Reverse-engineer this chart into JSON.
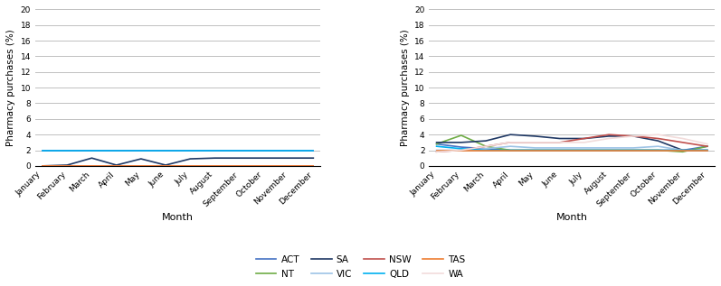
{
  "months": [
    "January",
    "February",
    "March",
    "April",
    "May",
    "June",
    "July",
    "August",
    "September",
    "October",
    "November",
    "December"
  ],
  "chart1": {
    "ylabel": "Pharmacy purchases (%)",
    "xlabel": "Month",
    "ylim": [
      0,
      20
    ],
    "yticks": [
      0,
      2,
      4,
      6,
      8,
      10,
      12,
      14,
      16,
      18,
      20
    ],
    "series": {
      "ACT": {
        "color": "#4472C4",
        "data": [
          2.0,
          2.0,
          2.0,
          2.0,
          2.0,
          2.0,
          2.0,
          2.0,
          2.0,
          2.0,
          2.0,
          2.0
        ]
      },
      "NT": {
        "color": "#70AD47",
        "data": [
          0.0,
          0.0,
          0.0,
          0.0,
          0.0,
          0.0,
          0.0,
          0.0,
          0.0,
          0.0,
          0.0,
          0.0
        ]
      },
      "SA": {
        "color": "#1F3864",
        "data": [
          0.0,
          0.1,
          1.0,
          0.1,
          0.9,
          0.1,
          0.9,
          1.0,
          1.0,
          1.0,
          1.0,
          1.0
        ]
      },
      "VIC": {
        "color": "#9DC3E6",
        "data": [
          0.0,
          0.0,
          0.0,
          0.0,
          0.0,
          0.0,
          0.0,
          0.0,
          0.0,
          0.0,
          0.0,
          0.0
        ]
      },
      "NSW": {
        "color": "#C0504D",
        "data": [
          0.0,
          0.0,
          0.0,
          0.0,
          0.0,
          0.0,
          0.0,
          0.0,
          0.0,
          0.0,
          0.0,
          0.0
        ]
      },
      "QLD": {
        "color": "#00B0F0",
        "data": [
          2.0,
          2.0,
          2.0,
          2.0,
          2.0,
          2.0,
          2.0,
          2.0,
          2.0,
          2.0,
          2.0,
          2.0
        ]
      },
      "TAS": {
        "color": "#ED7D31",
        "data": [
          0.0,
          0.0,
          0.0,
          0.0,
          0.0,
          0.0,
          0.0,
          0.0,
          0.0,
          0.0,
          0.0,
          0.0
        ]
      },
      "WA": {
        "color": "#F2DCDB",
        "data": [
          -0.1,
          -0.1,
          -0.1,
          -0.1,
          -0.1,
          -0.1,
          -0.1,
          -0.1,
          -0.1,
          -0.1,
          -0.1,
          -0.1
        ]
      }
    }
  },
  "chart2": {
    "ylabel": "Pharmacy purchases (%)",
    "xlabel": "Month",
    "ylim": [
      0,
      20
    ],
    "yticks": [
      0,
      2,
      4,
      6,
      8,
      10,
      12,
      14,
      16,
      18,
      20
    ],
    "series": {
      "ACT": {
        "color": "#4472C4",
        "data": [
          2.8,
          2.4,
          2.2,
          2.0,
          2.0,
          2.0,
          2.0,
          2.0,
          2.0,
          2.0,
          2.0,
          2.5
        ]
      },
      "NT": {
        "color": "#70AD47",
        "data": [
          2.8,
          3.9,
          2.5,
          2.0,
          2.0,
          2.0,
          2.0,
          2.0,
          2.0,
          2.0,
          1.8,
          2.5
        ]
      },
      "SA": {
        "color": "#1F3864",
        "data": [
          3.0,
          3.0,
          3.2,
          4.0,
          3.8,
          3.5,
          3.5,
          3.8,
          3.8,
          3.2,
          2.0,
          2.0
        ]
      },
      "VIC": {
        "color": "#9DC3E6",
        "data": [
          2.0,
          2.0,
          2.2,
          2.5,
          2.3,
          2.3,
          2.3,
          2.3,
          2.3,
          2.5,
          2.0,
          2.0
        ]
      },
      "NSW": {
        "color": "#C0504D",
        "data": [
          1.8,
          2.0,
          2.5,
          3.0,
          3.0,
          3.0,
          3.5,
          4.0,
          3.8,
          3.5,
          3.0,
          2.5
        ]
      },
      "QLD": {
        "color": "#00B0F0",
        "data": [
          2.5,
          2.2,
          2.0,
          2.0,
          2.0,
          2.0,
          2.0,
          2.0,
          2.0,
          2.0,
          2.0,
          2.0
        ]
      },
      "TAS": {
        "color": "#ED7D31",
        "data": [
          2.0,
          2.0,
          2.0,
          2.0,
          2.0,
          2.0,
          2.0,
          2.0,
          2.0,
          2.0,
          2.0,
          2.0
        ]
      },
      "WA": {
        "color": "#F2DCDB",
        "data": [
          1.8,
          2.0,
          2.5,
          3.0,
          3.0,
          3.0,
          3.0,
          3.5,
          3.8,
          4.0,
          3.5,
          2.8
        ]
      }
    }
  },
  "legend_row1": [
    "ACT",
    "NT",
    "SA",
    "VIC"
  ],
  "legend_row2": [
    "NSW",
    "QLD",
    "TAS",
    "WA"
  ],
  "background_color": "#ffffff"
}
